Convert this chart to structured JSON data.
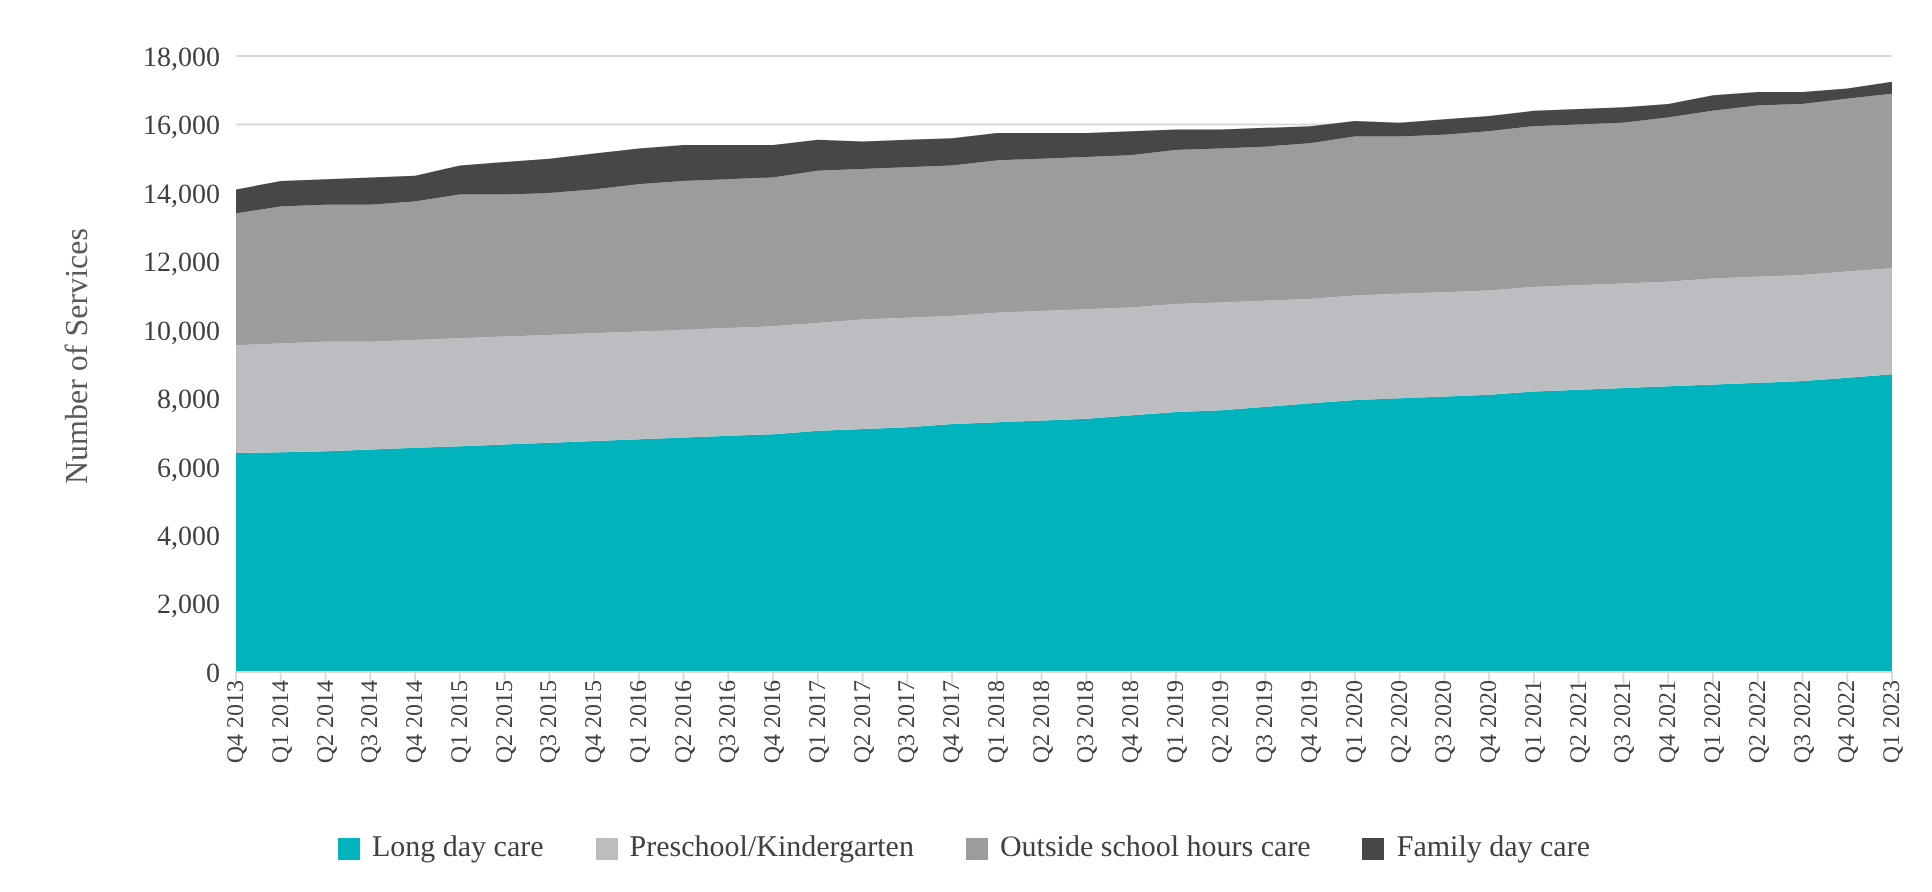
{
  "chart_data": {
    "type": "area",
    "stacked": true,
    "ylabel": "Number of Services",
    "categories": [
      "Q4 2013",
      "Q1 2014",
      "Q2 2014",
      "Q3 2014",
      "Q4 2014",
      "Q1 2015",
      "Q2 2015",
      "Q3 2015",
      "Q4 2015",
      "Q1 2016",
      "Q2 2016",
      "Q3 2016",
      "Q4 2016",
      "Q1 2017",
      "Q2 2017",
      "Q3 2017",
      "Q4 2017",
      "Q1 2018",
      "Q2 2018",
      "Q3 2018",
      "Q4 2018",
      "Q1 2019",
      "Q2 2019",
      "Q3 2019",
      "Q4 2019",
      "Q1 2020",
      "Q2 2020",
      "Q3 2020",
      "Q4 2020",
      "Q1 2021",
      "Q2 2021",
      "Q3 2021",
      "Q4 2021",
      "Q1 2022",
      "Q2 2022",
      "Q3 2022",
      "Q4 2022",
      "Q1 2023"
    ],
    "series": [
      {
        "name": "Long day care",
        "color": "#00b3bc",
        "values": [
          6400,
          6420,
          6450,
          6500,
          6550,
          6600,
          6650,
          6700,
          6750,
          6800,
          6850,
          6900,
          6950,
          7050,
          7100,
          7150,
          7250,
          7300,
          7350,
          7400,
          7500,
          7600,
          7650,
          7750,
          7850,
          7950,
          8000,
          8050,
          8100,
          8200,
          8250,
          8300,
          8350,
          8400,
          8450,
          8500,
          8600,
          8700
        ]
      },
      {
        "name": "Preschool/Kindergarten",
        "color": "#bcbdc1",
        "values": [
          3150,
          3180,
          3200,
          3150,
          3150,
          3150,
          3150,
          3150,
          3150,
          3150,
          3150,
          3150,
          3150,
          3150,
          3200,
          3200,
          3150,
          3200,
          3200,
          3200,
          3150,
          3150,
          3150,
          3100,
          3050,
          3050,
          3050,
          3050,
          3050,
          3050,
          3050,
          3050,
          3050,
          3100,
          3100,
          3100,
          3100,
          3100
        ]
      },
      {
        "name": "Outside school hours care",
        "color": "#9b9c9e",
        "values": [
          3850,
          4000,
          4000,
          4000,
          4050,
          4200,
          4150,
          4150,
          4200,
          4300,
          4350,
          4350,
          4350,
          4450,
          4400,
          4400,
          4400,
          4450,
          4450,
          4450,
          4450,
          4500,
          4500,
          4500,
          4550,
          4650,
          4600,
          4600,
          4650,
          4700,
          4700,
          4700,
          4800,
          4900,
          5000,
          5000,
          5050,
          5100
        ]
      },
      {
        "name": "Family day care",
        "color": "#474749",
        "values": [
          700,
          750,
          750,
          800,
          750,
          850,
          950,
          1000,
          1050,
          1050,
          1050,
          1000,
          950,
          900,
          800,
          800,
          800,
          800,
          750,
          700,
          700,
          600,
          550,
          550,
          500,
          450,
          400,
          450,
          450,
          450,
          450,
          450,
          400,
          450,
          400,
          350,
          300,
          350
        ]
      }
    ],
    "ylim": [
      0,
      18000
    ],
    "yticks": [
      0,
      {
        "value": 2000,
        "label": "2,000"
      },
      {
        "value": 4000,
        "label": "4,000"
      },
      {
        "value": 6000,
        "label": "6,000"
      },
      {
        "value": 8000,
        "label": "8,000"
      },
      {
        "value": 10000,
        "label": "10,000"
      },
      {
        "value": 12000,
        "label": "12,000"
      },
      {
        "value": 14000,
        "label": "14,000"
      },
      {
        "value": 16000,
        "label": "16,000"
      },
      {
        "value": 18000,
        "label": "18,000"
      }
    ],
    "grid": "y",
    "legend": "bottom"
  }
}
